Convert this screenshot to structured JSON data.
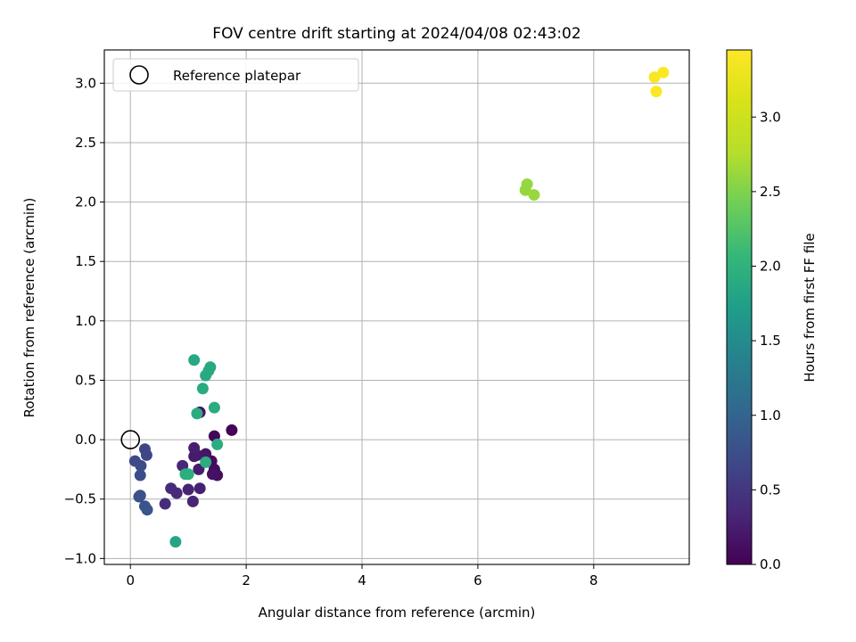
{
  "chart_data": {
    "type": "scatter",
    "title": "FOV centre drift starting at 2024/04/08 02:43:02",
    "xlabel": "Angular distance from reference (arcmin)",
    "ylabel": "Rotation from reference (arcmin)",
    "xlim": [
      -0.45,
      9.65
    ],
    "ylim": [
      -1.05,
      3.28
    ],
    "xticks": [
      "0",
      "2",
      "4",
      "6",
      "8"
    ],
    "yticks": [
      "−1.0",
      "−0.5",
      "0.0",
      "0.5",
      "1.0",
      "1.5",
      "2.0",
      "2.5",
      "3.0"
    ],
    "grid": true,
    "legend": {
      "position": "top-left",
      "entries": [
        "Reference platepar"
      ]
    },
    "reference_point": {
      "x": 0.0,
      "y": 0.0
    },
    "colorbar": {
      "label": "Hours from first FF file",
      "range": [
        0.0,
        3.45
      ],
      "ticks": [
        "0.0",
        "0.5",
        "1.0",
        "1.5",
        "2.0",
        "2.5",
        "3.0"
      ],
      "colormap": "viridis"
    },
    "points": [
      {
        "x": 1.75,
        "y": 0.08,
        "c": 0.02
      },
      {
        "x": 1.45,
        "y": 0.03,
        "c": 0.05
      },
      {
        "x": 1.4,
        "y": -0.18,
        "c": 0.08
      },
      {
        "x": 1.45,
        "y": -0.25,
        "c": 0.1
      },
      {
        "x": 1.5,
        "y": -0.3,
        "c": 0.12
      },
      {
        "x": 1.42,
        "y": -0.29,
        "c": 0.14
      },
      {
        "x": 1.2,
        "y": 0.23,
        "c": 0.15
      },
      {
        "x": 1.3,
        "y": -0.12,
        "c": 0.18
      },
      {
        "x": 1.15,
        "y": -0.13,
        "c": 0.2
      },
      {
        "x": 1.1,
        "y": -0.14,
        "c": 0.22
      },
      {
        "x": 1.18,
        "y": -0.25,
        "c": 0.24
      },
      {
        "x": 1.1,
        "y": -0.07,
        "c": 0.26
      },
      {
        "x": 1.2,
        "y": -0.41,
        "c": 0.28
      },
      {
        "x": 1.0,
        "y": -0.42,
        "c": 0.3
      },
      {
        "x": 1.08,
        "y": -0.52,
        "c": 0.32
      },
      {
        "x": 0.9,
        "y": -0.22,
        "c": 0.34
      },
      {
        "x": 0.8,
        "y": -0.45,
        "c": 0.36
      },
      {
        "x": 0.7,
        "y": -0.41,
        "c": 0.38
      },
      {
        "x": 0.6,
        "y": -0.54,
        "c": 0.4
      },
      {
        "x": 0.25,
        "y": -0.08,
        "c": 0.65
      },
      {
        "x": 0.28,
        "y": -0.13,
        "c": 0.67
      },
      {
        "x": 0.08,
        "y": -0.18,
        "c": 0.7
      },
      {
        "x": 0.18,
        "y": -0.22,
        "c": 0.72
      },
      {
        "x": 0.17,
        "y": -0.3,
        "c": 0.74
      },
      {
        "x": 0.17,
        "y": -0.47,
        "c": 0.76
      },
      {
        "x": 0.15,
        "y": -0.48,
        "c": 0.78
      },
      {
        "x": 0.25,
        "y": -0.56,
        "c": 0.8
      },
      {
        "x": 0.29,
        "y": -0.59,
        "c": 0.82
      },
      {
        "x": 1.1,
        "y": 0.67,
        "c": 1.85
      },
      {
        "x": 1.38,
        "y": 0.61,
        "c": 1.86
      },
      {
        "x": 1.35,
        "y": 0.58,
        "c": 1.87
      },
      {
        "x": 1.3,
        "y": 0.54,
        "c": 1.88
      },
      {
        "x": 1.25,
        "y": 0.43,
        "c": 1.89
      },
      {
        "x": 1.45,
        "y": 0.27,
        "c": 1.9
      },
      {
        "x": 1.15,
        "y": 0.22,
        "c": 1.91
      },
      {
        "x": 1.5,
        "y": -0.04,
        "c": 1.92
      },
      {
        "x": 1.3,
        "y": -0.19,
        "c": 1.93
      },
      {
        "x": 1.0,
        "y": -0.29,
        "c": 1.94
      },
      {
        "x": 0.95,
        "y": -0.29,
        "c": 1.95
      },
      {
        "x": 0.78,
        "y": -0.86,
        "c": 1.82
      },
      {
        "x": 6.85,
        "y": 2.15,
        "c": 2.6
      },
      {
        "x": 6.82,
        "y": 2.1,
        "c": 2.61
      },
      {
        "x": 6.97,
        "y": 2.06,
        "c": 2.62
      },
      {
        "x": 9.05,
        "y": 3.05,
        "c": 3.42
      },
      {
        "x": 9.2,
        "y": 3.09,
        "c": 3.43
      },
      {
        "x": 9.08,
        "y": 2.93,
        "c": 3.44
      }
    ]
  }
}
